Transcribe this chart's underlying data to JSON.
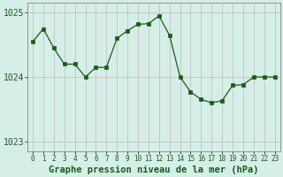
{
  "x": [
    0,
    1,
    2,
    3,
    4,
    5,
    6,
    7,
    8,
    9,
    10,
    11,
    12,
    13,
    14,
    15,
    16,
    17,
    18,
    19,
    20,
    21,
    22,
    23
  ],
  "y": [
    1024.55,
    1024.75,
    1024.45,
    1024.2,
    1024.2,
    1024.0,
    1024.15,
    1024.15,
    1024.6,
    1024.72,
    1024.82,
    1024.83,
    1024.95,
    1024.65,
    1024.0,
    1023.77,
    1023.65,
    1023.6,
    1023.63,
    1023.87,
    1023.88,
    1024.0,
    1024.0,
    1024.0
  ],
  "ylim": [
    1022.85,
    1025.15
  ],
  "yticks": [
    1023,
    1024,
    1025
  ],
  "xticks": [
    0,
    1,
    2,
    3,
    4,
    5,
    6,
    7,
    8,
    9,
    10,
    11,
    12,
    13,
    14,
    15,
    16,
    17,
    18,
    19,
    20,
    21,
    22,
    23
  ],
  "line_color": "#1a5c1a",
  "marker_color": "#1a5c1a",
  "bg_color": "#d5eee8",
  "vgrid_color": "#c4b8b8",
  "hgrid_color": "#c4b8b8",
  "xlabel": "Graphe pression niveau de la mer (hPa)",
  "xlabel_fontsize": 7.5,
  "tick_fontsize": 7.0,
  "ylabel_color": "#1a5c1a"
}
